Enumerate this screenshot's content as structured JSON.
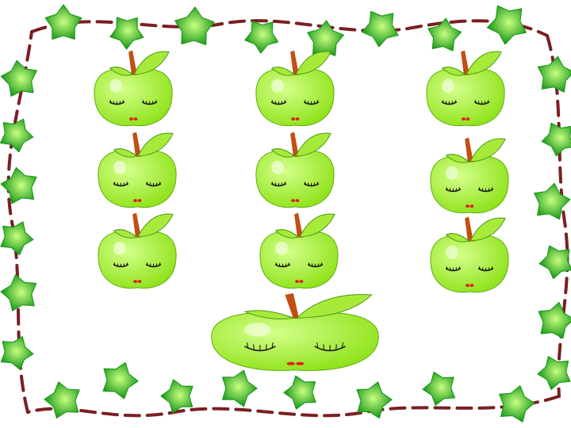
{
  "slide": {
    "background": "#ffffff",
    "border": {
      "style": "ivy-leaf-frame",
      "vine_color": "#7a1f22",
      "leaf_color_light": "#c8ff80",
      "leaf_color_dark": "#1e9a1e"
    },
    "apples": {
      "style": "sleeping-green-apple",
      "body_color": "#8fe21a",
      "body_highlight": "#d4ff8a",
      "stem_color": "#c24e12",
      "leaf_color": "#a8ea3a",
      "eye_color": "#1a1a1a",
      "mouth_color": "#e02020",
      "groups": [
        {
          "name": "left-column",
          "count": 3
        },
        {
          "name": "middle-column",
          "count": 3
        },
        {
          "name": "right-column",
          "count": 3
        },
        {
          "name": "bottom-large",
          "count": 1
        }
      ]
    }
  }
}
